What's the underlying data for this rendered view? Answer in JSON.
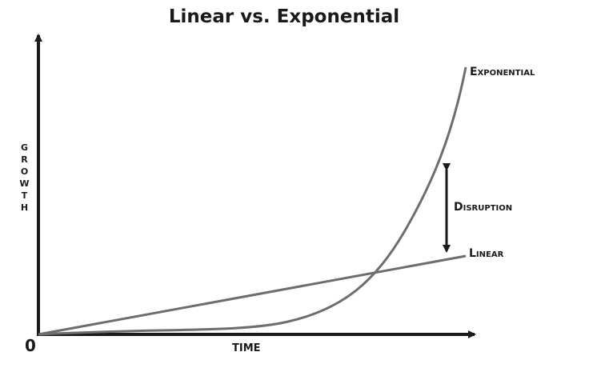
{
  "title": "Linear vs. Exponential",
  "axes": {
    "y_label": "GROWTH",
    "x_label": "TIME",
    "origin": "0"
  },
  "curves": {
    "exponential": "Exponential",
    "linear": "Linear"
  },
  "annotation": "Disruption"
}
